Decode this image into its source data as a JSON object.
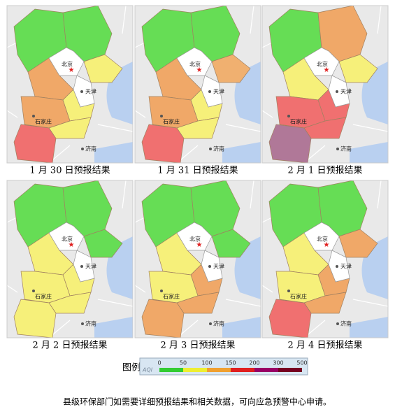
{
  "maps": [
    {
      "caption": "1 月 30 日预报结果"
    },
    {
      "caption": "1 月 31 日预报结果"
    },
    {
      "caption": "2 月 1 日预报结果"
    },
    {
      "caption": "2 月 2 日预报结果"
    },
    {
      "caption": "2 月 3 日预报结果"
    },
    {
      "caption": "2 月 4 日预报结果"
    }
  ],
  "map_labels": [
    "北京",
    "天津",
    "石家庄",
    "济南"
  ],
  "legend": {
    "title": "图例",
    "index": "AQI",
    "ticks": [
      0,
      50,
      100,
      150,
      200,
      300,
      500
    ]
  },
  "footer": "县级环保部门如需要详细预报结果和相关数据，可向应急预警中心申请。"
}
